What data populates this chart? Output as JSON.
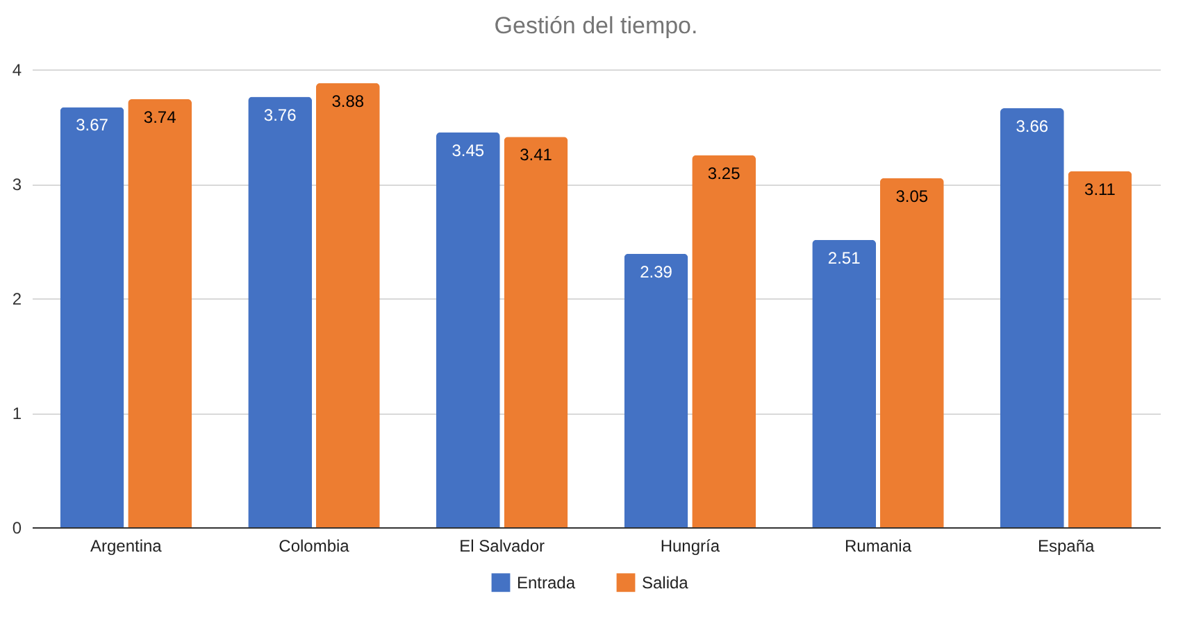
{
  "chart_data": {
    "type": "bar",
    "title": "Gestión del tiempo.",
    "categories": [
      "Argentina",
      "Colombia",
      "El Salvador",
      "Hungría",
      "Rumania",
      "España"
    ],
    "series": [
      {
        "name": "Entrada",
        "color": "#4472c4",
        "values": [
          3.67,
          3.76,
          3.45,
          2.39,
          2.51,
          3.66
        ]
      },
      {
        "name": "Salida",
        "color": "#ed7d31",
        "values": [
          3.74,
          3.88,
          3.41,
          3.25,
          3.05,
          3.11
        ]
      }
    ],
    "ylim": [
      0,
      4
    ],
    "yticks": [
      0,
      1,
      2,
      3,
      4
    ],
    "grid": "y",
    "legend": "bottom",
    "data_labels": true
  }
}
